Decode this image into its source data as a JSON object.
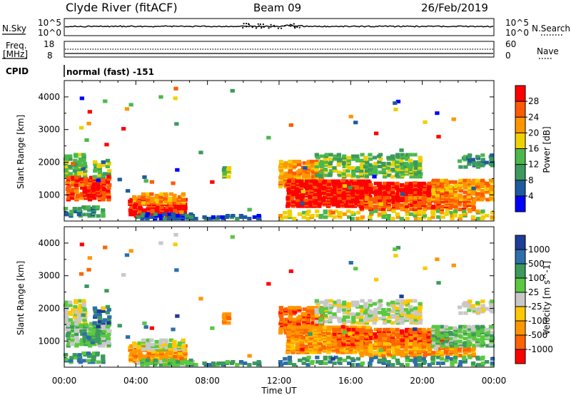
{
  "header": {
    "station": "Clyde River (fitACF)",
    "beam": "Beam 09",
    "date": "26/Feb/2019"
  },
  "nsky_panel": {
    "left_label": "N.Sky",
    "left_ticks": [
      "10^5",
      "10^0"
    ],
    "right_label": "N.Search",
    "right_ticks": [
      "10^5",
      "10^0"
    ]
  },
  "freq_panel": {
    "left_label_1": "Freq.",
    "left_label_2": "[MHz]",
    "left_ticks": [
      "18",
      "8"
    ],
    "right_label": "Nave",
    "right_ticks": [
      "60",
      "0"
    ]
  },
  "cpid": {
    "label": "CPID",
    "value": "normal (fast) -151"
  },
  "colors": {
    "power": [
      "#0000ff",
      "#1e5aa0",
      "#3c9a5c",
      "#4cb84c",
      "#f0d000",
      "#ff9600",
      "#ff5a00",
      "#ff0000"
    ],
    "velocity": [
      "#1e3c9a",
      "#2e6eaa",
      "#3c9a5c",
      "#5ac840",
      "#c8c8c8",
      "#ffc800",
      "#ff9600",
      "#ff6400",
      "#ff0000"
    ]
  },
  "chart_data": [
    {
      "type": "heatmap",
      "title": "Power",
      "xlabel": "Time UT",
      "ylabel": "Slant Range [km]",
      "x_ticks": [
        "00:00",
        "04:00",
        "08:00",
        "12:00",
        "16:00",
        "20:00",
        "00:00"
      ],
      "xlim": [
        0,
        24
      ],
      "ylim": [
        200,
        4500
      ],
      "y_ticks": [
        "1000",
        "2000",
        "3000",
        "4000"
      ],
      "colorbar": {
        "label": "Power [dB]",
        "ticks": [
          "4",
          "8",
          "12",
          "16",
          "20",
          "24",
          "28"
        ],
        "range": [
          0,
          32
        ]
      }
    },
    {
      "type": "heatmap",
      "title": "Velocity",
      "xlabel": "Time UT",
      "ylabel": "Slant Range [km]",
      "x_ticks": [
        "00:00",
        "04:00",
        "08:00",
        "12:00",
        "16:00",
        "20:00",
        "00:00"
      ],
      "xlim": [
        0,
        24
      ],
      "ylim": [
        200,
        4500
      ],
      "y_ticks": [
        "1000",
        "2000",
        "3000",
        "4000"
      ],
      "colorbar": {
        "label": "Velocity [m s^-1]",
        "ticks": [
          "1000",
          "500",
          "100",
          "25",
          "-25",
          "-100",
          "-500",
          "-1000"
        ]
      }
    }
  ]
}
